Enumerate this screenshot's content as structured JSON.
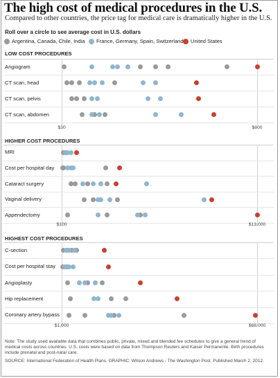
{
  "header": {
    "title": "The high cost of medical procedures in the U.S.",
    "subtitle": "Compared to other countries, the price tag for medical care is dramatically higher in the U.S.",
    "instruction": "Roll over a circle to see average cost in U.S. dollars"
  },
  "legend": [
    {
      "label": "Argentina, Canada, Chile, India",
      "color": "#9a9a9a"
    },
    {
      "label": "France, Germany, Spain, Switzerland",
      "color": "#90b6cf"
    },
    {
      "label": "United States",
      "color": "#c8412e"
    }
  ],
  "colors": {
    "gray": "#9a9a9a",
    "blue": "#90b6cf",
    "red": "#c8412e"
  },
  "footer": {
    "note": "Note: The study used available data that combines public, private, mixed and blended fee schedules to give a general trend of medical costs across countries. U.S. costs were based on data from Thompson Reuters and Kaiser Permanente. Birth procedures include prenatal and post-natal care.",
    "source": "SOURCE: International Federation of Health Plans. GRAPHIC: Wilson Andrews - The Washington Post. Published March 2, 2012."
  },
  "chart_data": [
    {
      "type": "scatter",
      "title": "LOW COST PROCEDURES",
      "xlim": [
        30,
        800
      ],
      "tick_labels": [
        "$30",
        "$800"
      ],
      "grid": false,
      "rows": [
        {
          "label": "Angiogram",
          "gray": [
            40,
            340,
            400,
            450,
            680
          ],
          "blue": [
            150,
            230,
            250,
            290
          ],
          "red": [
            800
          ]
        },
        {
          "label": "CT scan, head",
          "gray": [
            50,
            70,
            100,
            240
          ],
          "blue": [
            140,
            160,
            190,
            350,
            400
          ],
          "red": [
            560
          ]
        },
        {
          "label": "CT scan, pelvis",
          "gray": [
            70,
            90,
            120
          ],
          "blue": [
            150,
            170,
            370,
            420
          ],
          "red": [
            570
          ]
        },
        {
          "label": "CT scan, abdomen",
          "gray": [
            110,
            160,
            200
          ],
          "blue": [
            150,
            180,
            400,
            500
          ],
          "red": [
            630
          ]
        }
      ]
    },
    {
      "type": "scatter",
      "title": "HIGHER COST PROCEDURES",
      "xlim": [
        100,
        13000
      ],
      "tick_labels": [
        "$100",
        "$13,000"
      ],
      "grid": false,
      "rows": [
        {
          "label": "MRI",
          "gray": [
            200,
            300,
            450
          ],
          "blue": [
            350,
            500,
            700
          ],
          "red": [
            1100
          ]
        },
        {
          "label": "Cost per hospital day",
          "gray": [
            150,
            200,
            3000
          ],
          "blue": [
            500,
            700,
            850
          ],
          "red": [
            3900
          ]
        },
        {
          "label": "Cataract surgery",
          "gray": [
            700,
            1000,
            1800,
            3100
          ],
          "blue": [
            1500,
            2200,
            2700,
            5700
          ],
          "red": [
            3700
          ]
        },
        {
          "label": "Vaginal delivery",
          "gray": [
            1600,
            2200,
            3800
          ],
          "blue": [
            2500,
            2700,
            3300,
            9500
          ],
          "red": [
            10000
          ]
        },
        {
          "label": "Appendectomy",
          "gray": [
            500,
            3100,
            5300
          ],
          "blue": [
            2500,
            5100,
            5600
          ],
          "red": [
            13000
          ]
        }
      ]
    },
    {
      "type": "scatter",
      "title": "HIGHEST COST PROCEDURES",
      "xlim": [
        1000,
        68000
      ],
      "tick_labels": [
        "$1,000",
        "$68,000"
      ],
      "grid": false,
      "rows": [
        {
          "label": "C-section",
          "gray": [
            1500,
            3000,
            4500,
            6000
          ],
          "blue": [
            2500,
            3600,
            5300
          ],
          "red": [
            15500
          ]
        },
        {
          "label": "Cost per hospital stay",
          "gray": [
            1300,
            2700
          ],
          "blue": [
            2000,
            3400,
            5000
          ],
          "red": [
            17000
          ]
        },
        {
          "label": "Angioplasty",
          "gray": [
            3000,
            10000,
            15000
          ],
          "blue": [
            7000,
            9000,
            12500
          ],
          "red": [
            28000
          ]
        },
        {
          "label": "Hip replacement",
          "gray": [
            4000,
            18000,
            23000
          ],
          "blue": [
            12000,
            13500
          ],
          "red": [
            40500
          ]
        },
        {
          "label": "Coronary artery bypass",
          "gray": [
            3500,
            9000,
            19000,
            43000
          ],
          "blue": [
            17000,
            18000,
            20500
          ],
          "red": [
            67500
          ]
        }
      ]
    }
  ]
}
